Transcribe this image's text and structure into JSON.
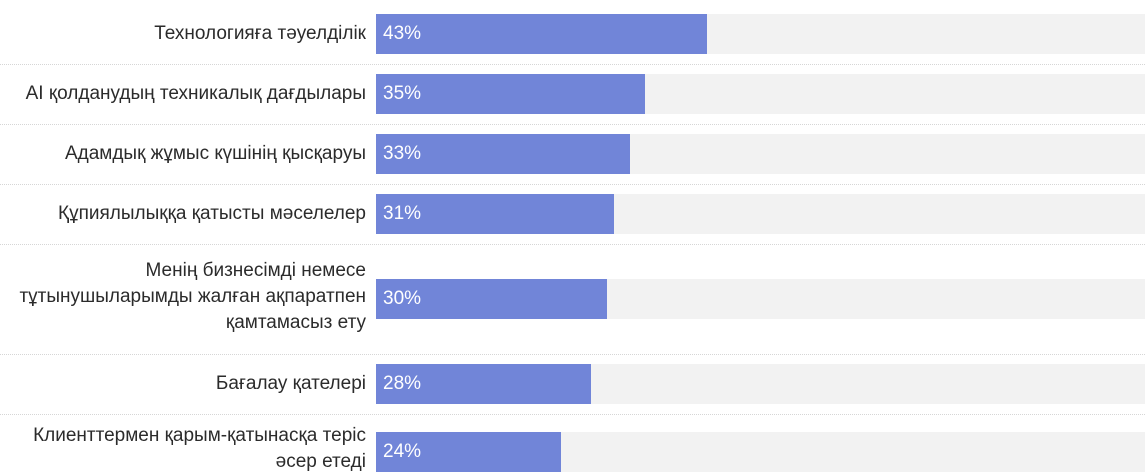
{
  "chart_data": {
    "type": "bar",
    "orientation": "horizontal",
    "categories": [
      "Технологияға тәуелділік",
      "AI қолданудың техникалық дағдылары",
      "Адамдық жұмыс күшінің қысқаруы",
      "Құпиялылыққа қатысты мәселелер",
      "Менің бизнесімді немесе тұтынушыларымды жалған ақпаратпен қамтамасыз ету",
      "Бағалау қателері",
      "Клиенттермен қарым-қатынасқа теріс әсер етеді"
    ],
    "values": [
      43,
      35,
      33,
      31,
      30,
      28,
      24
    ],
    "value_labels": [
      "43%",
      "35%",
      "33%",
      "31%",
      "30%",
      "28%",
      "24%"
    ],
    "label_lines": [
      [
        "Технологияға тәуелділік"
      ],
      [
        "AI қолданудың техникалық дағдылары"
      ],
      [
        "Адамдық жұмыс күшінің қысқаруы"
      ],
      [
        "Құпиялылыққа қатысты мәселелер"
      ],
      [
        "Менің бизнесімді немесе",
        "тұтынушыларымды жалған ақпаратпен",
        "қамтамасыз ету"
      ],
      [
        "Бағалау қателері"
      ],
      [
        "Клиенттермен қарым-қатынасқа теріс",
        "әсер етеді"
      ]
    ],
    "xlim": [
      0,
      100
    ],
    "unit": "%",
    "grid": false,
    "legend": "none",
    "colors": {
      "bar": "#7185d8",
      "track": "#f2f2f2",
      "label_text": "#2b2b2b",
      "value_text": "#ffffff"
    }
  }
}
